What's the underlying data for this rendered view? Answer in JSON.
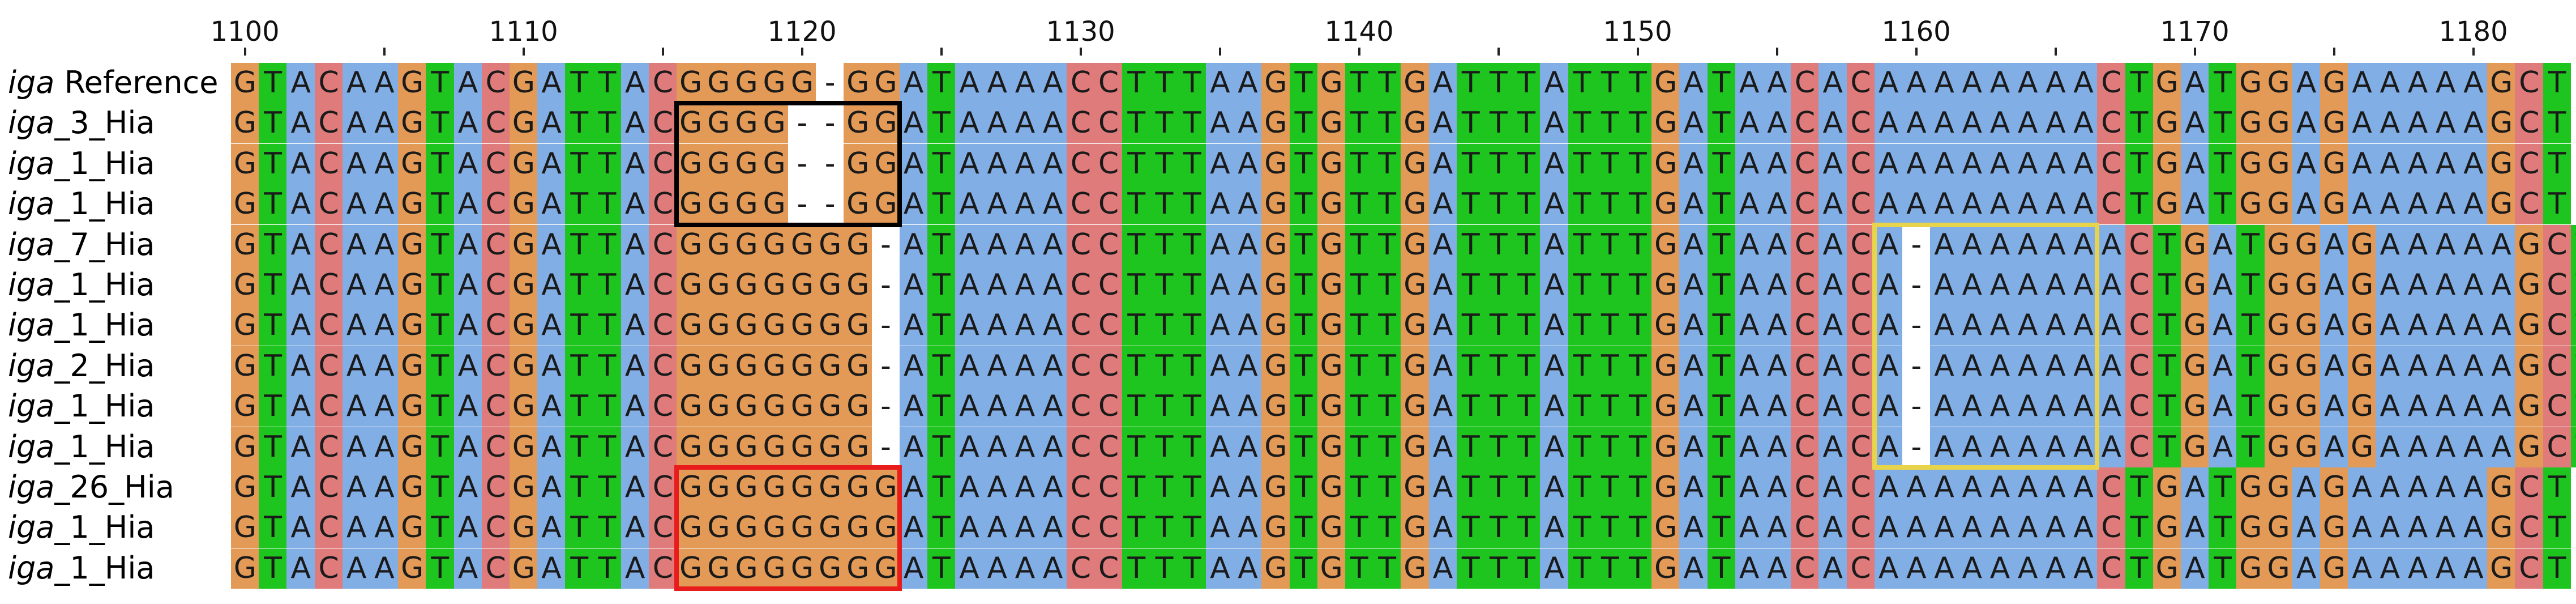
{
  "ruler": {
    "start": 1100,
    "labels": [
      "1100",
      "1110",
      "1120",
      "1130",
      "1140",
      "1150",
      "1160",
      "1170",
      "1180"
    ]
  },
  "base_colors": {
    "A": "#82aee6",
    "C": "#e07b7b",
    "G": "#e39a56",
    "T": "#1fc51f",
    "-": "#ffffff"
  },
  "sequences": [
    {
      "prefix": "iga",
      "suffix": " Reference",
      "seq": "GTACAAGTACGATTACGGGGG-GGATAAAACCTTTAAGTGTTGATTTATTTGATAACACAAAAAAAACTGATGGAGAAAAAGCT"
    },
    {
      "prefix": "iga",
      "suffix": "_3_Hia",
      "seq": "GTACAAGTACGATTACGGGG--GGATAAAACCTTTAAGTGTTGATTTATTTGATAACACAAAAAAAACTGATGGAGAAAAAGCT"
    },
    {
      "prefix": "iga",
      "suffix": "_1_Hia",
      "seq": "GTACAAGTACGATTACGGGG--GGATAAAACCTTTAAGTGTTGATTTATTTGATAACACAAAAAAAACTGATGGAGAAAAAGCT"
    },
    {
      "prefix": "iga",
      "suffix": "_1_Hia",
      "seq": "GTACAAGTACGATTACGGGG--GGATAAAACCTTTAAGTGTTGATTTATTTGATAACACAAAAAAAACTGATGGAGAAAAAGCT"
    },
    {
      "prefix": "iga",
      "suffix": "_7_Hia",
      "seq": "GTACAAGTACGATTACGGGGGGG-ATAAAACCTTTAAGTGTTGATTTATTTGATAACACA-AAAAAAACTGATGGAGAAAAAGCT"
    },
    {
      "prefix": "iga",
      "suffix": "_1_Hia",
      "seq": "GTACAAGTACGATTACGGGGGGG-ATAAAACCTTTAAGTGTTGATTTATTTGATAACACA-AAAAAAACTGATGGAGAAAAAGCT"
    },
    {
      "prefix": "iga",
      "suffix": "_1_Hia",
      "seq": "GTACAAGTACGATTACGGGGGGG-ATAAAACCTTTAAGTGTTGATTTATTTGATAACACA-AAAAAAACTGATGGAGAAAAAGCT"
    },
    {
      "prefix": "iga",
      "suffix": "_2_Hia",
      "seq": "GTACAAGTACGATTACGGGGGGG-ATAAAACCTTTAAGTGTTGATTTATTTGATAACACA-AAAAAAACTGATGGAGAAAAAGCT"
    },
    {
      "prefix": "iga",
      "suffix": "_1_Hia",
      "seq": "GTACAAGTACGATTACGGGGGGG-ATAAAACCTTTAAGTGTTGATTTATTTGATAACACA-AAAAAAACTGATGGAGAAAAAGCT"
    },
    {
      "prefix": "iga",
      "suffix": "_1_Hia",
      "seq": "GTACAAGTACGATTACGGGGGGG-ATAAAACCTTTAAGTGTTGATTTATTTGATAACACA-AAAAAAACTGATGGAGAAAAAGCT"
    },
    {
      "prefix": "iga",
      "suffix": "_26_Hia",
      "seq": "GTACAAGTACGATTACGGGGGGGGATAAAACCTTTAAGTGTTGATTTATTTGATAACACAAAAAAAACTGATGGAGAAAAAGCT"
    },
    {
      "prefix": "iga",
      "suffix": "_1_Hia",
      "seq": "GTACAAGTACGATTACGGGGGGGGATAAAACCTTTAAGTGTTGATTTATTTGATAACACAAAAAAAACTGATGGAGAAAAAGCT"
    },
    {
      "prefix": "iga",
      "suffix": "_1_Hia",
      "seq": "GTACAAGTACGATTACGGGGGGGGATAAAACCTTTAAGTGTTGATTTATTTGATAACACAAAAAAAACTGATGGAGAAAAAGCT"
    }
  ],
  "highlight_boxes": [
    {
      "color": "#000000",
      "first_row": 2,
      "last_row": 4,
      "first_col": 17,
      "last_col": 24
    },
    {
      "color": "#e8d44a",
      "first_row": 5,
      "last_row": 10,
      "first_col": 60,
      "last_col": 67
    },
    {
      "color": "#e81c1c",
      "first_row": 11,
      "last_row": 13,
      "first_col": 17,
      "last_col": 24
    }
  ]
}
